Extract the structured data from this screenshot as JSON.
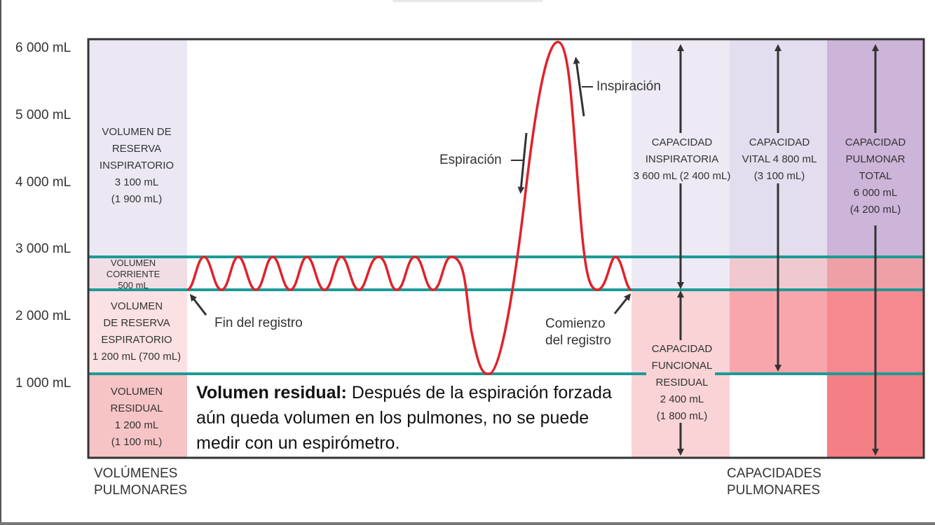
{
  "y_axis": {
    "ticks": [
      "6 000 mL",
      "5 000 mL",
      "4 000 mL",
      "3 000 mL",
      "2 000 mL",
      "1 000 mL"
    ]
  },
  "volumes": {
    "irv": [
      "VOLUMEN DE",
      "RESERVA",
      "INSPIRATORIO",
      "3 100 mL",
      "(1 900 mL)"
    ],
    "tv": [
      "VOLUMEN",
      "CORRIENTE",
      "500 mL"
    ],
    "erv": [
      "VOLUMEN",
      "DE RESERVA",
      "ESPIRATORIO",
      "1 200 mL (700 mL)"
    ],
    "rv": [
      "VOLUMEN",
      "RESIDUAL",
      "1 200 mL",
      "(1 100 mL)"
    ]
  },
  "capacities": {
    "ic": [
      "CAPACIDAD",
      "INSPIRATORIA",
      "3 600 mL (2 400 mL)"
    ],
    "vc": [
      "CAPACIDAD",
      "VITAL 4 800 mL",
      "(3 100 mL)"
    ],
    "tlc": [
      "CAPACIDAD",
      "PULMONAR",
      "TOTAL",
      "6 000 mL",
      "(4 200 mL)"
    ],
    "frc": [
      "CAPACIDAD",
      "FUNCIONAL",
      "RESIDUAL",
      "2 400 mL",
      "(1 800 mL)"
    ]
  },
  "annotations": {
    "inspiracion": "Inspiración",
    "espiracion": "Espiración",
    "fin_registro": "Fin del registro",
    "comienzo_line1": "Comienzo",
    "comienzo_line2": "del registro"
  },
  "residual_note": {
    "bold": "Volumen residual:",
    "text": " Después de la espiración forzada aún queda volumen en los pulmones, no se puede medir con un espirómetro."
  },
  "footer": {
    "left": [
      "VOLÚMENES",
      "PULMONARES"
    ],
    "right": [
      "CAPACIDADES",
      "PULMONARES"
    ]
  },
  "colors": {
    "trace": "#e0222a",
    "teal_line": "#1d9a96",
    "lavender_light": "#ebe8f4",
    "lavender_mid": "#ddd6ea",
    "lavender_dark": "#cdb4d9",
    "pink_light": "#f9d3d6",
    "pink_mid": "#f6b1b6",
    "pink_dark": "#f47f86"
  }
}
